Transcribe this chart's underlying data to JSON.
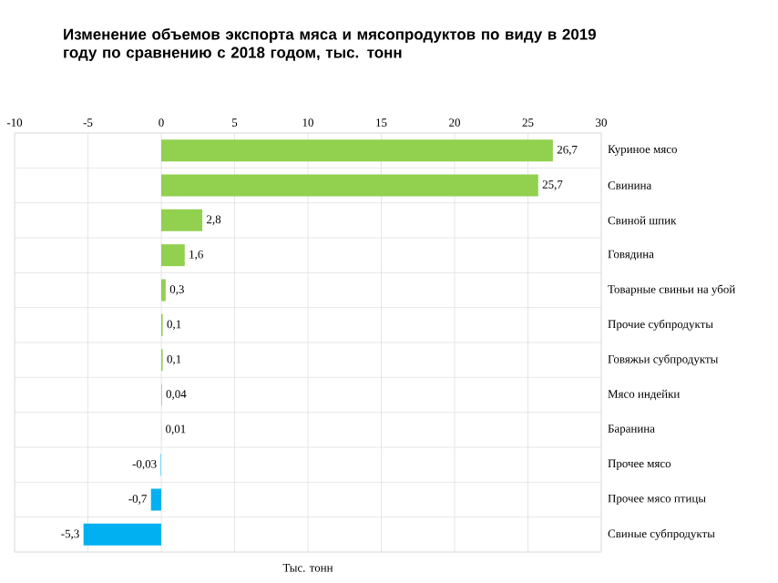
{
  "chart_data": {
    "type": "bar",
    "orientation": "horizontal",
    "title": "Изменение объемов экспорта мяса и мясопродуктов по виду в 2019 году по сравнению с 2018 годом, тыс. тонн",
    "xlabel": "Тыс. тонн",
    "categories": [
      "Куриное мясо",
      "Свинина",
      "Свиной шпик",
      "Говядина",
      "Товарные свиньи на убой",
      "Прочие субпродукты",
      "Говяжьи субпродукты",
      "Мясо индейки",
      "Баранина",
      "Прочее мясо",
      "Прочее мясо птицы",
      "Свиные субпродукты"
    ],
    "values": [
      26.7,
      25.7,
      2.8,
      1.6,
      0.3,
      0.1,
      0.1,
      0.04,
      0.01,
      -0.03,
      -0.7,
      -5.3
    ],
    "value_labels": [
      "26,7",
      "25,7",
      "2,8",
      "1,6",
      "0,3",
      "0,1",
      "0,1",
      "0,04",
      "0,01",
      "-0,03",
      "-0,7",
      "-5,3"
    ],
    "colors": [
      "#92d050",
      "#92d050",
      "#92d050",
      "#92d050",
      "#92d050",
      "#92d050",
      "#92d050",
      "#92d050",
      "#92d050",
      "#00b0f0",
      "#00b0f0",
      "#00b0f0"
    ],
    "xlim": [
      -10,
      30
    ],
    "xticks": [
      -10,
      -5,
      0,
      5,
      10,
      15,
      20,
      25,
      30
    ],
    "grid": true
  }
}
